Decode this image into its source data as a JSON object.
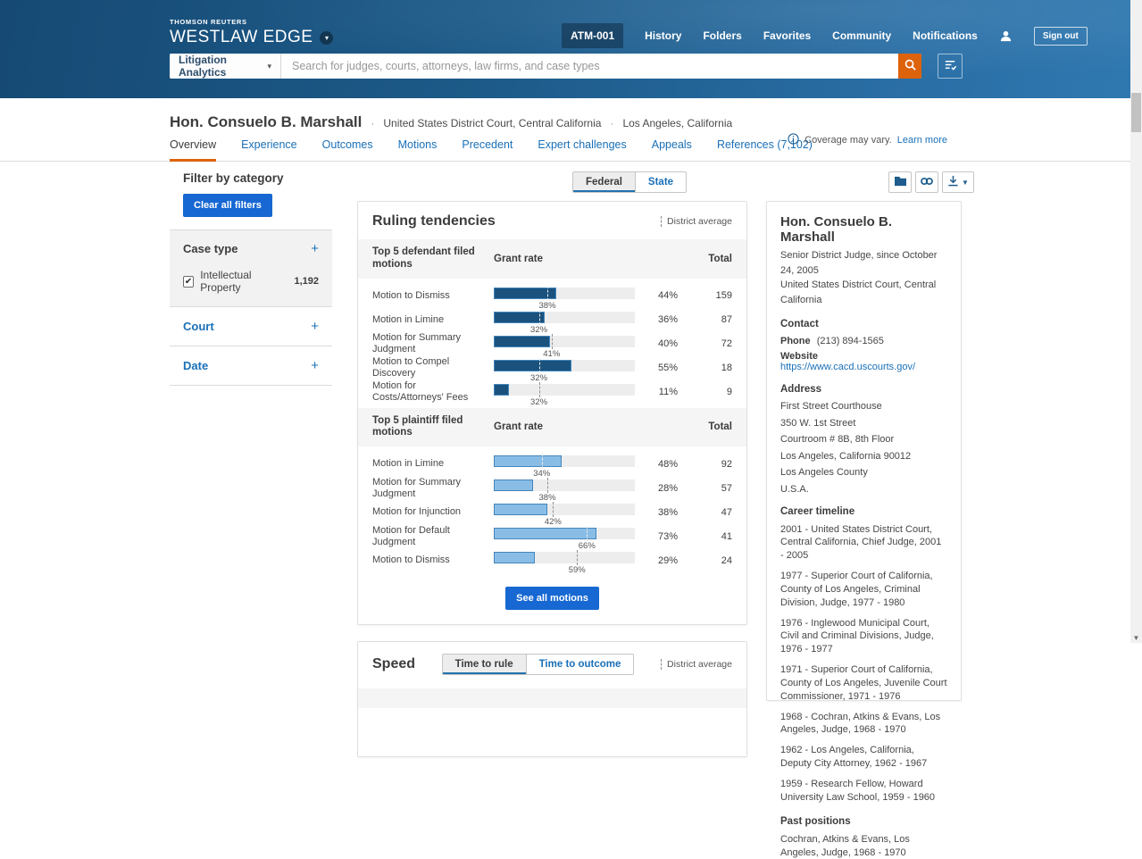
{
  "header": {
    "brand": {
      "eyebrow": "THOMSON REUTERS",
      "name": "WESTLAW EDGE"
    },
    "nav": {
      "client_id": "ATM-001",
      "history": "History",
      "folders": "Folders",
      "favorites": "Favorites",
      "community": "Community",
      "notifications": "Notifications",
      "sign_out": "Sign out"
    },
    "search": {
      "scope": "Litigation Analytics",
      "placeholder": "Search for judges, courts, attorneys, law firms, and case types"
    }
  },
  "profile_header": {
    "name": "Hon. Consuelo B. Marshall",
    "court": "United States District Court, Central California",
    "location": "Los Angeles, California",
    "tabs": [
      "Overview",
      "Experience",
      "Outcomes",
      "Motions",
      "Precedent",
      "Expert challenges",
      "Appeals",
      "References (7,102)"
    ],
    "active_tab": "Overview",
    "coverage_note": "Coverage may vary.",
    "coverage_link": "Learn more"
  },
  "filters": {
    "title": "Filter by category",
    "clear_button": "Clear all filters",
    "case_type": {
      "label": "Case type",
      "expand_glyph": "+",
      "item": {
        "label": "Intellectual Property",
        "count": "1,192",
        "checked": true,
        "check_glyph": "✔"
      }
    },
    "court_label": "Court",
    "date_label": "Date",
    "plus_glyph": "+"
  },
  "scope_toggle": {
    "federal": "Federal",
    "state": "State",
    "active": "Federal"
  },
  "icons": {
    "toolbar": [
      "folder-icon",
      "link-icon",
      "download-icon"
    ],
    "header": [
      "user-icon",
      "search-icon",
      "list-check-icon",
      "brand-caret-icon"
    ],
    "misc": [
      "info-icon",
      "district-average-dashed-line-icon"
    ]
  },
  "ruling": {
    "see_all": "See all motions"
  },
  "chart_data": {
    "type": "bar",
    "title": "Ruling tendencies",
    "legend": "District average",
    "orientation": "horizontal",
    "x_range": [
      0,
      100
    ],
    "sections": [
      {
        "name": "Top 5 defendant filed motions",
        "rate_header": "Grant rate",
        "total_header": "Total",
        "bar_style": "dark-blue",
        "rows": [
          {
            "label": "Motion to Dismiss",
            "grant_rate": 44,
            "district_avg": 38,
            "total": 159
          },
          {
            "label": "Motion in Limine",
            "grant_rate": 36,
            "district_avg": 32,
            "total": 87
          },
          {
            "label": "Motion for Summary Judgment",
            "grant_rate": 40,
            "district_avg": 41,
            "total": 72
          },
          {
            "label": "Motion to Compel Discovery",
            "grant_rate": 55,
            "district_avg": 32,
            "total": 18
          },
          {
            "label": "Motion for Costs/Attorneys' Fees",
            "grant_rate": 11,
            "district_avg": 32,
            "total": 9
          }
        ]
      },
      {
        "name": "Top 5 plaintiff filed motions",
        "rate_header": "Grant rate",
        "total_header": "Total",
        "bar_style": "light-blue",
        "rows": [
          {
            "label": "Motion in Limine",
            "grant_rate": 48,
            "district_avg": 34,
            "total": 92
          },
          {
            "label": "Motion for Summary Judgment",
            "grant_rate": 28,
            "district_avg": 38,
            "total": 57
          },
          {
            "label": "Motion for Injunction",
            "grant_rate": 38,
            "district_avg": 42,
            "total": 47
          },
          {
            "label": "Motion for Default Judgment",
            "grant_rate": 73,
            "district_avg": 66,
            "total": 41
          },
          {
            "label": "Motion to Dismiss",
            "grant_rate": 29,
            "district_avg": 59,
            "total": 24
          }
        ]
      }
    ],
    "colors": {
      "dark_bar": "#1a527d",
      "light_bar": "#8abde6",
      "bar_border": "#4286bd",
      "track": "#ededed"
    }
  },
  "speed": {
    "title": "Speed",
    "toggle_rule": "Time to rule",
    "toggle_outcome": "Time to outcome",
    "active": "Time to rule",
    "legend": "District average"
  },
  "judge_panel": {
    "name": "Hon. Consuelo B. Marshall",
    "title_line": "Senior District Judge, since October 24, 2005",
    "court_line": "United States District Court, Central California",
    "contact_header": "Contact",
    "phone_label": "Phone",
    "phone": "(213) 894-1565",
    "website_label": "Website",
    "website": "https://www.cacd.uscourts.gov/",
    "address_header": "Address",
    "address_lines": [
      "First Street Courthouse",
      "350 W. 1st Street",
      "Courtroom # 8B, 8th Floor",
      "Los Angeles, California 90012",
      "Los Angeles County",
      "U.S.A."
    ],
    "career_header": "Career timeline",
    "career_entries": [
      "2001 - United States District Court, Central California, Chief Judge, 2001 - 2005",
      "1977 - Superior Court of California, County of Los Angeles, Criminal Division, Judge, 1977 - 1980",
      "1976 - Inglewood Municipal Court, Civil and Criminal Divisions, Judge, 1976 - 1977",
      "1971 - Superior Court of California, County of Los Angeles, Juvenile Court Commissioner, 1971 - 1976",
      "1968 - Cochran, Atkins & Evans, Los Angeles, Judge, 1968 - 1970",
      "1962 - Los Angeles, California, Deputy City Attorney, 1962 - 1967",
      "1959 - Research Fellow, Howard University Law School, 1959 - 1960"
    ],
    "past_positions_header": "Past positions",
    "past_positions": [
      "Cochran, Atkins & Evans, Los Angeles, Judge, 1968 - 1970"
    ]
  },
  "colors": {
    "header_blue": "#1d5b8a",
    "accent_orange": "#dd620c",
    "link_blue": "#1a70b8",
    "button_blue": "#1768d2"
  }
}
